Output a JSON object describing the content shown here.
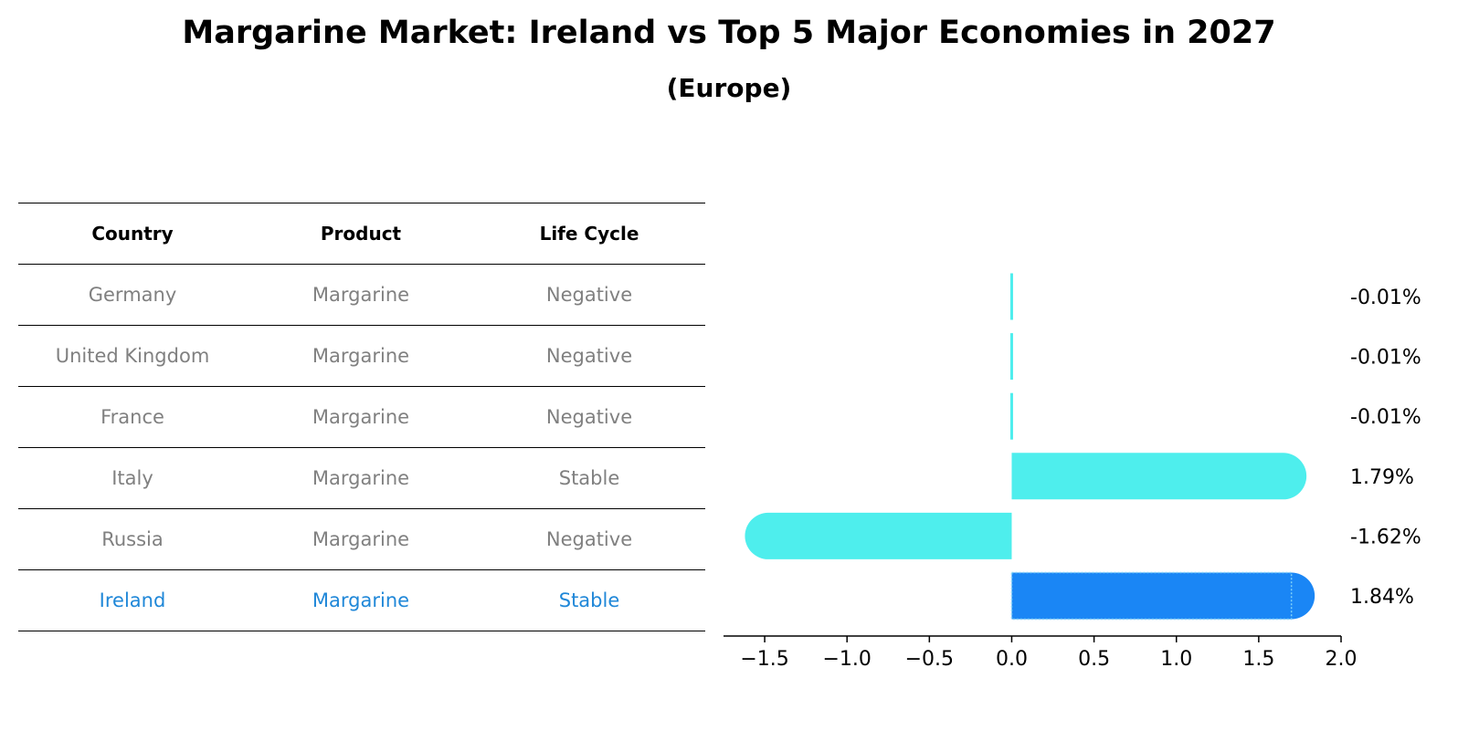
{
  "title": "Margarine Market: Ireland vs Top 5 Major Economies in 2027",
  "subtitle": "(Europe)",
  "table": {
    "headers": [
      "Country",
      "Product",
      "Life Cycle"
    ],
    "rows": [
      {
        "country": "Germany",
        "product": "Margarine",
        "life_cycle": "Negative"
      },
      {
        "country": "United Kingdom",
        "product": "Margarine",
        "life_cycle": "Negative"
      },
      {
        "country": "France",
        "product": "Margarine",
        "life_cycle": "Negative"
      },
      {
        "country": "Italy",
        "product": "Margarine",
        "life_cycle": "Stable"
      },
      {
        "country": "Russia",
        "product": "Margarine",
        "life_cycle": "Negative"
      },
      {
        "country": "Ireland",
        "product": "Margarine",
        "life_cycle": "Stable"
      }
    ]
  },
  "colors": {
    "bar": "#4eeeed",
    "highlight_bar": "#1a86f5",
    "highlight_text": "#1f87d8",
    "muted_text": "#808080"
  },
  "chart_data": {
    "type": "bar",
    "orientation": "horizontal",
    "categories": [
      "Germany",
      "United Kingdom",
      "France",
      "Italy",
      "Russia",
      "Ireland"
    ],
    "values": [
      -0.01,
      -0.01,
      -0.01,
      1.79,
      -1.62,
      1.84
    ],
    "value_labels": [
      "-0.01%",
      "-0.01%",
      "-0.01%",
      "1.79%",
      "-1.62%",
      "1.84%"
    ],
    "highlight": "Ireland",
    "xlim": [
      -1.75,
      2.0
    ],
    "xticks": [
      -1.5,
      -1.0,
      -0.5,
      0.0,
      0.5,
      1.0,
      1.5,
      2.0
    ],
    "xtick_labels": [
      "−1.5",
      "−1.0",
      "−0.5",
      "0.0",
      "0.5",
      "1.0",
      "1.5",
      "2.0"
    ],
    "xlabel": "",
    "ylabel": "",
    "grid": false
  }
}
